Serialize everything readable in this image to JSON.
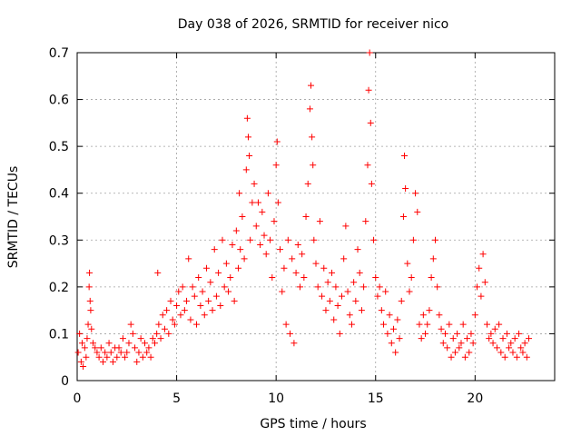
{
  "chart_data": {
    "type": "scatter",
    "title": "Day 038 of 2026, SRMTID for receiver nico",
    "xlabel": "GPS time / hours",
    "ylabel": "SRMTID / TECUs",
    "xlim": [
      0,
      24
    ],
    "ylim": [
      0,
      0.7
    ],
    "xticks": [
      0,
      5,
      10,
      15,
      20
    ],
    "xtick_labels": [
      "0",
      "5",
      "10",
      "15",
      "20"
    ],
    "yticks": [
      0,
      0.1,
      0.2,
      0.3,
      0.4,
      0.5,
      0.6,
      0.7
    ],
    "ytick_labels": [
      "0",
      "0.1",
      "0.2",
      "0.3",
      "0.4",
      "0.5",
      "0.6",
      "0.7"
    ],
    "grid": true,
    "marker": "+",
    "color": "#ff0000",
    "series": [
      {
        "name": "SRMTID",
        "points": [
          [
            0.05,
            0.06
          ],
          [
            0.12,
            0.1
          ],
          [
            0.2,
            0.04
          ],
          [
            0.25,
            0.08
          ],
          [
            0.3,
            0.03
          ],
          [
            0.38,
            0.07
          ],
          [
            0.45,
            0.05
          ],
          [
            0.5,
            0.09
          ],
          [
            0.55,
            0.12
          ],
          [
            0.6,
            0.2
          ],
          [
            0.62,
            0.23
          ],
          [
            0.65,
            0.17
          ],
          [
            0.68,
            0.15
          ],
          [
            0.72,
            0.11
          ],
          [
            0.8,
            0.08
          ],
          [
            0.9,
            0.07
          ],
          [
            1.0,
            0.06
          ],
          [
            1.1,
            0.05
          ],
          [
            1.2,
            0.07
          ],
          [
            1.3,
            0.04
          ],
          [
            1.4,
            0.06
          ],
          [
            1.5,
            0.05
          ],
          [
            1.6,
            0.08
          ],
          [
            1.7,
            0.06
          ],
          [
            1.8,
            0.04
          ],
          [
            1.9,
            0.07
          ],
          [
            2.0,
            0.05
          ],
          [
            2.1,
            0.07
          ],
          [
            2.2,
            0.06
          ],
          [
            2.3,
            0.09
          ],
          [
            2.4,
            0.05
          ],
          [
            2.5,
            0.06
          ],
          [
            2.6,
            0.08
          ],
          [
            2.7,
            0.12
          ],
          [
            2.8,
            0.1
          ],
          [
            2.9,
            0.07
          ],
          [
            3.0,
            0.04
          ],
          [
            3.1,
            0.06
          ],
          [
            3.2,
            0.09
          ],
          [
            3.3,
            0.05
          ],
          [
            3.4,
            0.08
          ],
          [
            3.5,
            0.06
          ],
          [
            3.6,
            0.07
          ],
          [
            3.7,
            0.05
          ],
          [
            3.8,
            0.09
          ],
          [
            3.9,
            0.08
          ],
          [
            4.0,
            0.1
          ],
          [
            4.05,
            0.23
          ],
          [
            4.1,
            0.12
          ],
          [
            4.2,
            0.09
          ],
          [
            4.3,
            0.14
          ],
          [
            4.4,
            0.11
          ],
          [
            4.5,
            0.15
          ],
          [
            4.6,
            0.1
          ],
          [
            4.7,
            0.17
          ],
          [
            4.8,
            0.13
          ],
          [
            4.9,
            0.12
          ],
          [
            5.0,
            0.16
          ],
          [
            5.1,
            0.19
          ],
          [
            5.2,
            0.14
          ],
          [
            5.3,
            0.2
          ],
          [
            5.4,
            0.15
          ],
          [
            5.5,
            0.17
          ],
          [
            5.6,
            0.26
          ],
          [
            5.7,
            0.13
          ],
          [
            5.8,
            0.2
          ],
          [
            5.9,
            0.18
          ],
          [
            6.0,
            0.12
          ],
          [
            6.1,
            0.22
          ],
          [
            6.2,
            0.16
          ],
          [
            6.3,
            0.19
          ],
          [
            6.4,
            0.14
          ],
          [
            6.5,
            0.24
          ],
          [
            6.6,
            0.17
          ],
          [
            6.7,
            0.21
          ],
          [
            6.8,
            0.15
          ],
          [
            6.9,
            0.28
          ],
          [
            7.0,
            0.18
          ],
          [
            7.1,
            0.23
          ],
          [
            7.2,
            0.16
          ],
          [
            7.3,
            0.3
          ],
          [
            7.4,
            0.2
          ],
          [
            7.5,
            0.25
          ],
          [
            7.6,
            0.19
          ],
          [
            7.7,
            0.22
          ],
          [
            7.8,
            0.29
          ],
          [
            7.9,
            0.17
          ],
          [
            8.0,
            0.32
          ],
          [
            8.1,
            0.24
          ],
          [
            8.15,
            0.4
          ],
          [
            8.2,
            0.28
          ],
          [
            8.3,
            0.35
          ],
          [
            8.4,
            0.26
          ],
          [
            8.5,
            0.45
          ],
          [
            8.55,
            0.56
          ],
          [
            8.6,
            0.52
          ],
          [
            8.65,
            0.48
          ],
          [
            8.7,
            0.3
          ],
          [
            8.8,
            0.38
          ],
          [
            8.9,
            0.42
          ],
          [
            9.0,
            0.33
          ],
          [
            9.1,
            0.38
          ],
          [
            9.2,
            0.29
          ],
          [
            9.3,
            0.36
          ],
          [
            9.4,
            0.31
          ],
          [
            9.5,
            0.27
          ],
          [
            9.6,
            0.4
          ],
          [
            9.7,
            0.3
          ],
          [
            9.8,
            0.22
          ],
          [
            9.9,
            0.34
          ],
          [
            10.0,
            0.46
          ],
          [
            10.05,
            0.51
          ],
          [
            10.1,
            0.38
          ],
          [
            10.2,
            0.28
          ],
          [
            10.3,
            0.19
          ],
          [
            10.4,
            0.24
          ],
          [
            10.5,
            0.12
          ],
          [
            10.6,
            0.3
          ],
          [
            10.7,
            0.1
          ],
          [
            10.8,
            0.26
          ],
          [
            10.9,
            0.08
          ],
          [
            11.0,
            0.23
          ],
          [
            11.1,
            0.29
          ],
          [
            11.2,
            0.2
          ],
          [
            11.3,
            0.27
          ],
          [
            11.4,
            0.22
          ],
          [
            11.5,
            0.35
          ],
          [
            11.6,
            0.42
          ],
          [
            11.7,
            0.58
          ],
          [
            11.75,
            0.63
          ],
          [
            11.8,
            0.52
          ],
          [
            11.85,
            0.46
          ],
          [
            11.9,
            0.3
          ],
          [
            12.0,
            0.25
          ],
          [
            12.1,
            0.2
          ],
          [
            12.2,
            0.34
          ],
          [
            12.3,
            0.18
          ],
          [
            12.4,
            0.24
          ],
          [
            12.5,
            0.15
          ],
          [
            12.6,
            0.21
          ],
          [
            12.7,
            0.17
          ],
          [
            12.8,
            0.23
          ],
          [
            12.9,
            0.13
          ],
          [
            13.0,
            0.2
          ],
          [
            13.1,
            0.16
          ],
          [
            13.2,
            0.1
          ],
          [
            13.3,
            0.18
          ],
          [
            13.4,
            0.26
          ],
          [
            13.5,
            0.33
          ],
          [
            13.6,
            0.19
          ],
          [
            13.7,
            0.14
          ],
          [
            13.8,
            0.12
          ],
          [
            13.9,
            0.21
          ],
          [
            14.0,
            0.17
          ],
          [
            14.1,
            0.28
          ],
          [
            14.2,
            0.23
          ],
          [
            14.3,
            0.15
          ],
          [
            14.4,
            0.2
          ],
          [
            14.5,
            0.34
          ],
          [
            14.6,
            0.46
          ],
          [
            14.65,
            0.62
          ],
          [
            14.7,
            0.7
          ],
          [
            14.75,
            0.55
          ],
          [
            14.8,
            0.42
          ],
          [
            14.9,
            0.3
          ],
          [
            15.0,
            0.22
          ],
          [
            15.1,
            0.18
          ],
          [
            15.2,
            0.2
          ],
          [
            15.3,
            0.15
          ],
          [
            15.4,
            0.12
          ],
          [
            15.5,
            0.19
          ],
          [
            15.6,
            0.1
          ],
          [
            15.7,
            0.14
          ],
          [
            15.8,
            0.08
          ],
          [
            15.9,
            0.11
          ],
          [
            16.0,
            0.06
          ],
          [
            16.1,
            0.13
          ],
          [
            16.2,
            0.09
          ],
          [
            16.3,
            0.17
          ],
          [
            16.4,
            0.35
          ],
          [
            16.45,
            0.48
          ],
          [
            16.5,
            0.41
          ],
          [
            16.6,
            0.25
          ],
          [
            16.7,
            0.19
          ],
          [
            16.8,
            0.22
          ],
          [
            16.9,
            0.3
          ],
          [
            17.0,
            0.4
          ],
          [
            17.1,
            0.36
          ],
          [
            17.2,
            0.12
          ],
          [
            17.3,
            0.09
          ],
          [
            17.4,
            0.14
          ],
          [
            17.5,
            0.1
          ],
          [
            17.6,
            0.12
          ],
          [
            17.7,
            0.15
          ],
          [
            17.8,
            0.22
          ],
          [
            17.9,
            0.26
          ],
          [
            18.0,
            0.3
          ],
          [
            18.1,
            0.2
          ],
          [
            18.2,
            0.14
          ],
          [
            18.3,
            0.11
          ],
          [
            18.4,
            0.08
          ],
          [
            18.5,
            0.1
          ],
          [
            18.6,
            0.07
          ],
          [
            18.7,
            0.12
          ],
          [
            18.8,
            0.05
          ],
          [
            18.9,
            0.09
          ],
          [
            19.0,
            0.06
          ],
          [
            19.1,
            0.1
          ],
          [
            19.2,
            0.07
          ],
          [
            19.3,
            0.08
          ],
          [
            19.4,
            0.12
          ],
          [
            19.5,
            0.05
          ],
          [
            19.6,
            0.09
          ],
          [
            19.7,
            0.06
          ],
          [
            19.8,
            0.1
          ],
          [
            19.9,
            0.08
          ],
          [
            20.0,
            0.14
          ],
          [
            20.1,
            0.2
          ],
          [
            20.2,
            0.24
          ],
          [
            20.3,
            0.18
          ],
          [
            20.4,
            0.27
          ],
          [
            20.5,
            0.21
          ],
          [
            20.6,
            0.12
          ],
          [
            20.7,
            0.09
          ],
          [
            20.8,
            0.1
          ],
          [
            20.9,
            0.08
          ],
          [
            21.0,
            0.11
          ],
          [
            21.1,
            0.07
          ],
          [
            21.2,
            0.12
          ],
          [
            21.3,
            0.06
          ],
          [
            21.4,
            0.09
          ],
          [
            21.5,
            0.05
          ],
          [
            21.6,
            0.1
          ],
          [
            21.7,
            0.07
          ],
          [
            21.8,
            0.08
          ],
          [
            21.9,
            0.06
          ],
          [
            22.0,
            0.09
          ],
          [
            22.1,
            0.05
          ],
          [
            22.2,
            0.1
          ],
          [
            22.3,
            0.07
          ],
          [
            22.4,
            0.06
          ],
          [
            22.5,
            0.08
          ],
          [
            22.6,
            0.05
          ],
          [
            22.7,
            0.09
          ]
        ]
      }
    ]
  }
}
